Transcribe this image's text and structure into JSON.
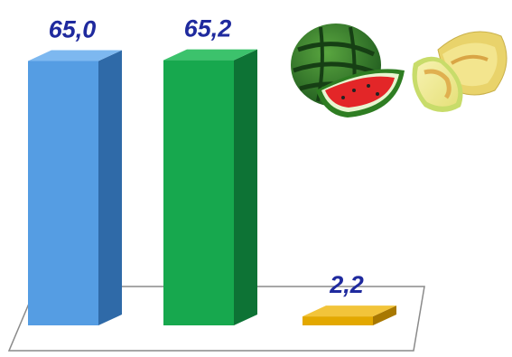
{
  "chart_data": {
    "type": "bar",
    "categories": [
      "",
      "",
      ""
    ],
    "values": [
      65.0,
      65.2,
      2.2
    ],
    "data_labels": [
      "65,0",
      "65,2",
      "2,2"
    ],
    "ylim": [
      0,
      70
    ],
    "grid": false,
    "legend": "none",
    "style": "3d-columns",
    "series_colors": [
      {
        "front": "#559de3",
        "side": "#2f6aa8",
        "top": "#7db8f0"
      },
      {
        "front": "#17a84e",
        "side": "#0d7335",
        "top": "#3cc26c"
      },
      {
        "front": "#e3a800",
        "side": "#a87800",
        "top": "#f2c43a"
      }
    ],
    "label_color": "#1f2a9e",
    "floor_stroke": "#8a8a8a"
  },
  "decorations": {
    "images": [
      "watermelon-illustration",
      "cantaloupe-melon-illustration"
    ]
  }
}
